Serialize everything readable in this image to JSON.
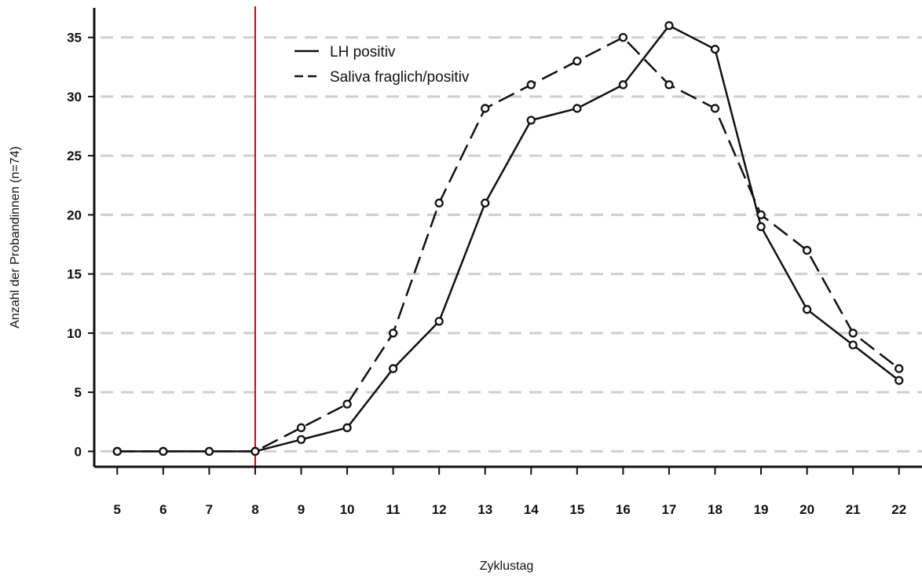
{
  "chart_data": {
    "type": "line",
    "xlabel": "Zyklustag",
    "ylabel": "Anzahl der Probandinnen (n=74)",
    "x": [
      5,
      6,
      7,
      8,
      9,
      10,
      11,
      12,
      13,
      14,
      15,
      16,
      17,
      18,
      19,
      20,
      21,
      22
    ],
    "xlim": [
      4.5,
      22.5
    ],
    "ylim": [
      -1.3,
      37.5
    ],
    "yticks": [
      0,
      5,
      10,
      15,
      20,
      25,
      30,
      35
    ],
    "grid": "horizontal dashed",
    "legend_position": "top-left",
    "reference_line": {
      "x": 8,
      "color": "#e00000"
    },
    "series": [
      {
        "name": "LH positiv",
        "line_style": "solid",
        "values": [
          0,
          0,
          0,
          0,
          1,
          2,
          7,
          11,
          21,
          28,
          29,
          31,
          36,
          34,
          19,
          12,
          9,
          6
        ]
      },
      {
        "name": "Saliva fraglich/positiv",
        "line_style": "dashed",
        "values": [
          0,
          0,
          0,
          0,
          2,
          4,
          10,
          21,
          29,
          31,
          33,
          35,
          31,
          29,
          20,
          17,
          10,
          7
        ]
      }
    ]
  }
}
